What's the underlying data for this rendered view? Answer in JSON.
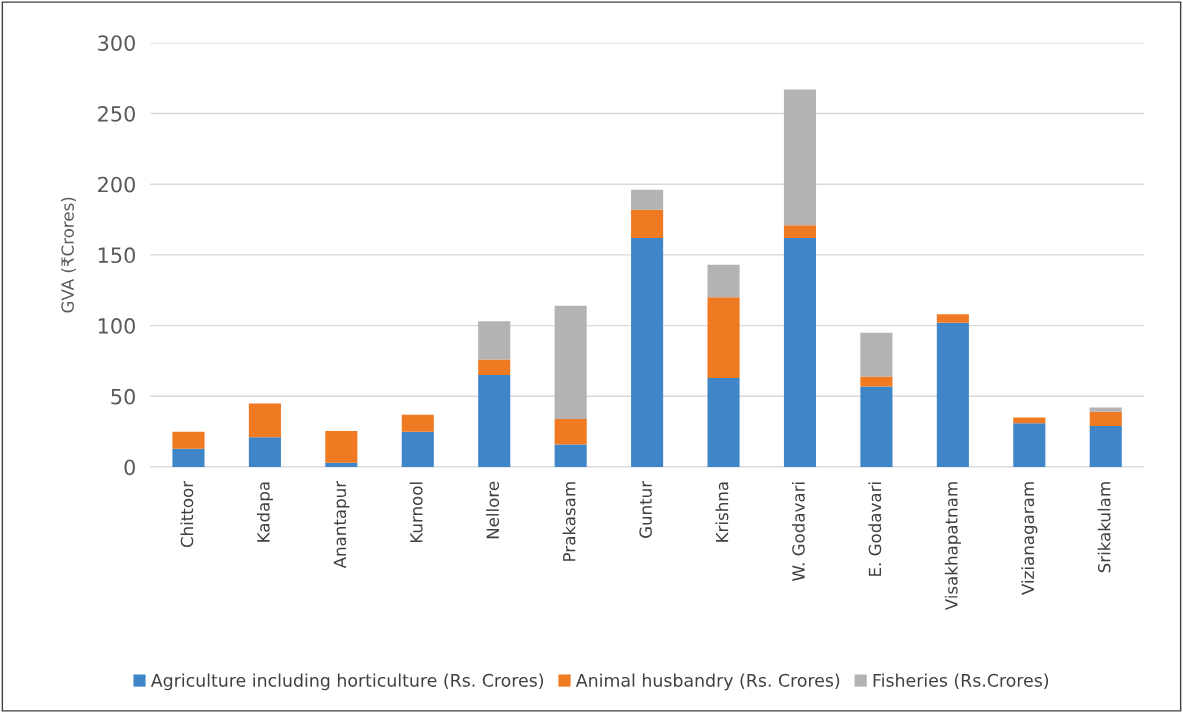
{
  "chart_data": {
    "type": "bar",
    "stacked": true,
    "ylabel": "GVA (₹Crores)",
    "categories": [
      "Chittoor",
      "Kadapa",
      "Anantapur",
      "Kurnool",
      "Nellore",
      "Prakasam",
      "Guntur",
      "Krishna",
      "W. Godavari",
      "E. Godavari",
      "Visakhapatnam",
      "Vizianagaram",
      "Srikakulam"
    ],
    "series": [
      {
        "name": "Agriculture including horticulture (Rs. Crores)",
        "color": "#3f86c8",
        "values": [
          13,
          21,
          3,
          25,
          65,
          16,
          162,
          63,
          162,
          57,
          102,
          31,
          29
        ]
      },
      {
        "name": "Animal husbandry (Rs. Crores)",
        "color": "#f07a22",
        "values": [
          12,
          24,
          22.5,
          12,
          11,
          18,
          20,
          57,
          9,
          7,
          6,
          4,
          10
        ]
      },
      {
        "name": "Fisheries (Rs.Crores)",
        "color": "#b4b2b2",
        "values": [
          null,
          null,
          null,
          null,
          27,
          80,
          14,
          23,
          96,
          31,
          null,
          null,
          3
        ]
      }
    ],
    "ylim": [
      0,
      300
    ],
    "yticks": [
      0,
      50,
      100,
      150,
      200,
      250,
      300
    ],
    "grid": "y",
    "legend": "bottom"
  }
}
